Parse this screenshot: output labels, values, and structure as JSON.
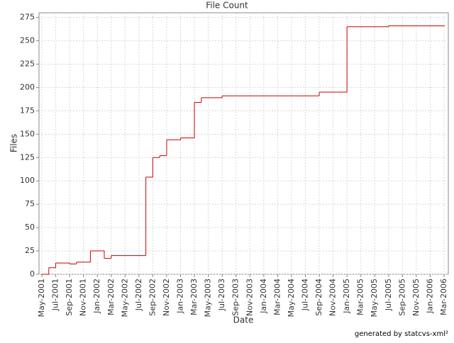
{
  "chart_data": {
    "type": "step",
    "title": "File Count",
    "x_label": "Date",
    "y_label": "Files",
    "footer": "generated by statcvs-xml²",
    "series": [
      {
        "name": "Files",
        "color": "#cc0000",
        "x": [
          "2001-05",
          "2001-06",
          "2001-07",
          "2001-09",
          "2001-10",
          "2001-12",
          "2002-02",
          "2002-03",
          "2002-08",
          "2002-09",
          "2002-10",
          "2002-11",
          "2003-01",
          "2003-03",
          "2003-04",
          "2003-07",
          "2004-09",
          "2005-01",
          "2005-07",
          "2006-03"
        ],
        "values": [
          0,
          7,
          12,
          11,
          13,
          25,
          17,
          20,
          104,
          125,
          127,
          144,
          146,
          184,
          189,
          191,
          195,
          265,
          266,
          266
        ]
      }
    ],
    "xlim": [
      "2001-05",
      "2006-03"
    ],
    "xticks": [
      {
        "value": "2001-05",
        "label": "May-2001"
      },
      {
        "value": "2001-07",
        "label": "Jul-2001"
      },
      {
        "value": "2001-09",
        "label": "Sep-2001"
      },
      {
        "value": "2001-11",
        "label": "Nov-2001"
      },
      {
        "value": "2002-01",
        "label": "Jan-2002"
      },
      {
        "value": "2002-03",
        "label": "Mar-2002"
      },
      {
        "value": "2002-05",
        "label": "May-2002"
      },
      {
        "value": "2002-07",
        "label": "Jul-2002"
      },
      {
        "value": "2002-09",
        "label": "Sep-2002"
      },
      {
        "value": "2002-11",
        "label": "Nov-2002"
      },
      {
        "value": "2003-01",
        "label": "Jan-2003"
      },
      {
        "value": "2003-03",
        "label": "Mar-2003"
      },
      {
        "value": "2003-05",
        "label": "May-2003"
      },
      {
        "value": "2003-07",
        "label": "Jul-2003"
      },
      {
        "value": "2003-09",
        "label": "Sep-2003"
      },
      {
        "value": "2003-11",
        "label": "Nov-2003"
      },
      {
        "value": "2004-01",
        "label": "Jan-2004"
      },
      {
        "value": "2004-03",
        "label": "Mar-2004"
      },
      {
        "value": "2004-05",
        "label": "May-2004"
      },
      {
        "value": "2004-07",
        "label": "Jul-2004"
      },
      {
        "value": "2004-09",
        "label": "Sep-2004"
      },
      {
        "value": "2004-11",
        "label": "Nov-2004"
      },
      {
        "value": "2005-01",
        "label": "Jan-2005"
      },
      {
        "value": "2005-03",
        "label": "Mar-2005"
      },
      {
        "value": "2005-05",
        "label": "May-2005"
      },
      {
        "value": "2005-07",
        "label": "Jul-2005"
      },
      {
        "value": "2005-09",
        "label": "Sep-2005"
      },
      {
        "value": "2005-11",
        "label": "Nov-2005"
      },
      {
        "value": "2006-01",
        "label": "Jan-2006"
      },
      {
        "value": "2006-03",
        "label": "Mar-2006"
      }
    ],
    "ylim": [
      0,
      280
    ],
    "yticks": [
      0,
      25,
      50,
      75,
      100,
      125,
      150,
      175,
      200,
      225,
      250,
      275
    ],
    "grid": true
  }
}
